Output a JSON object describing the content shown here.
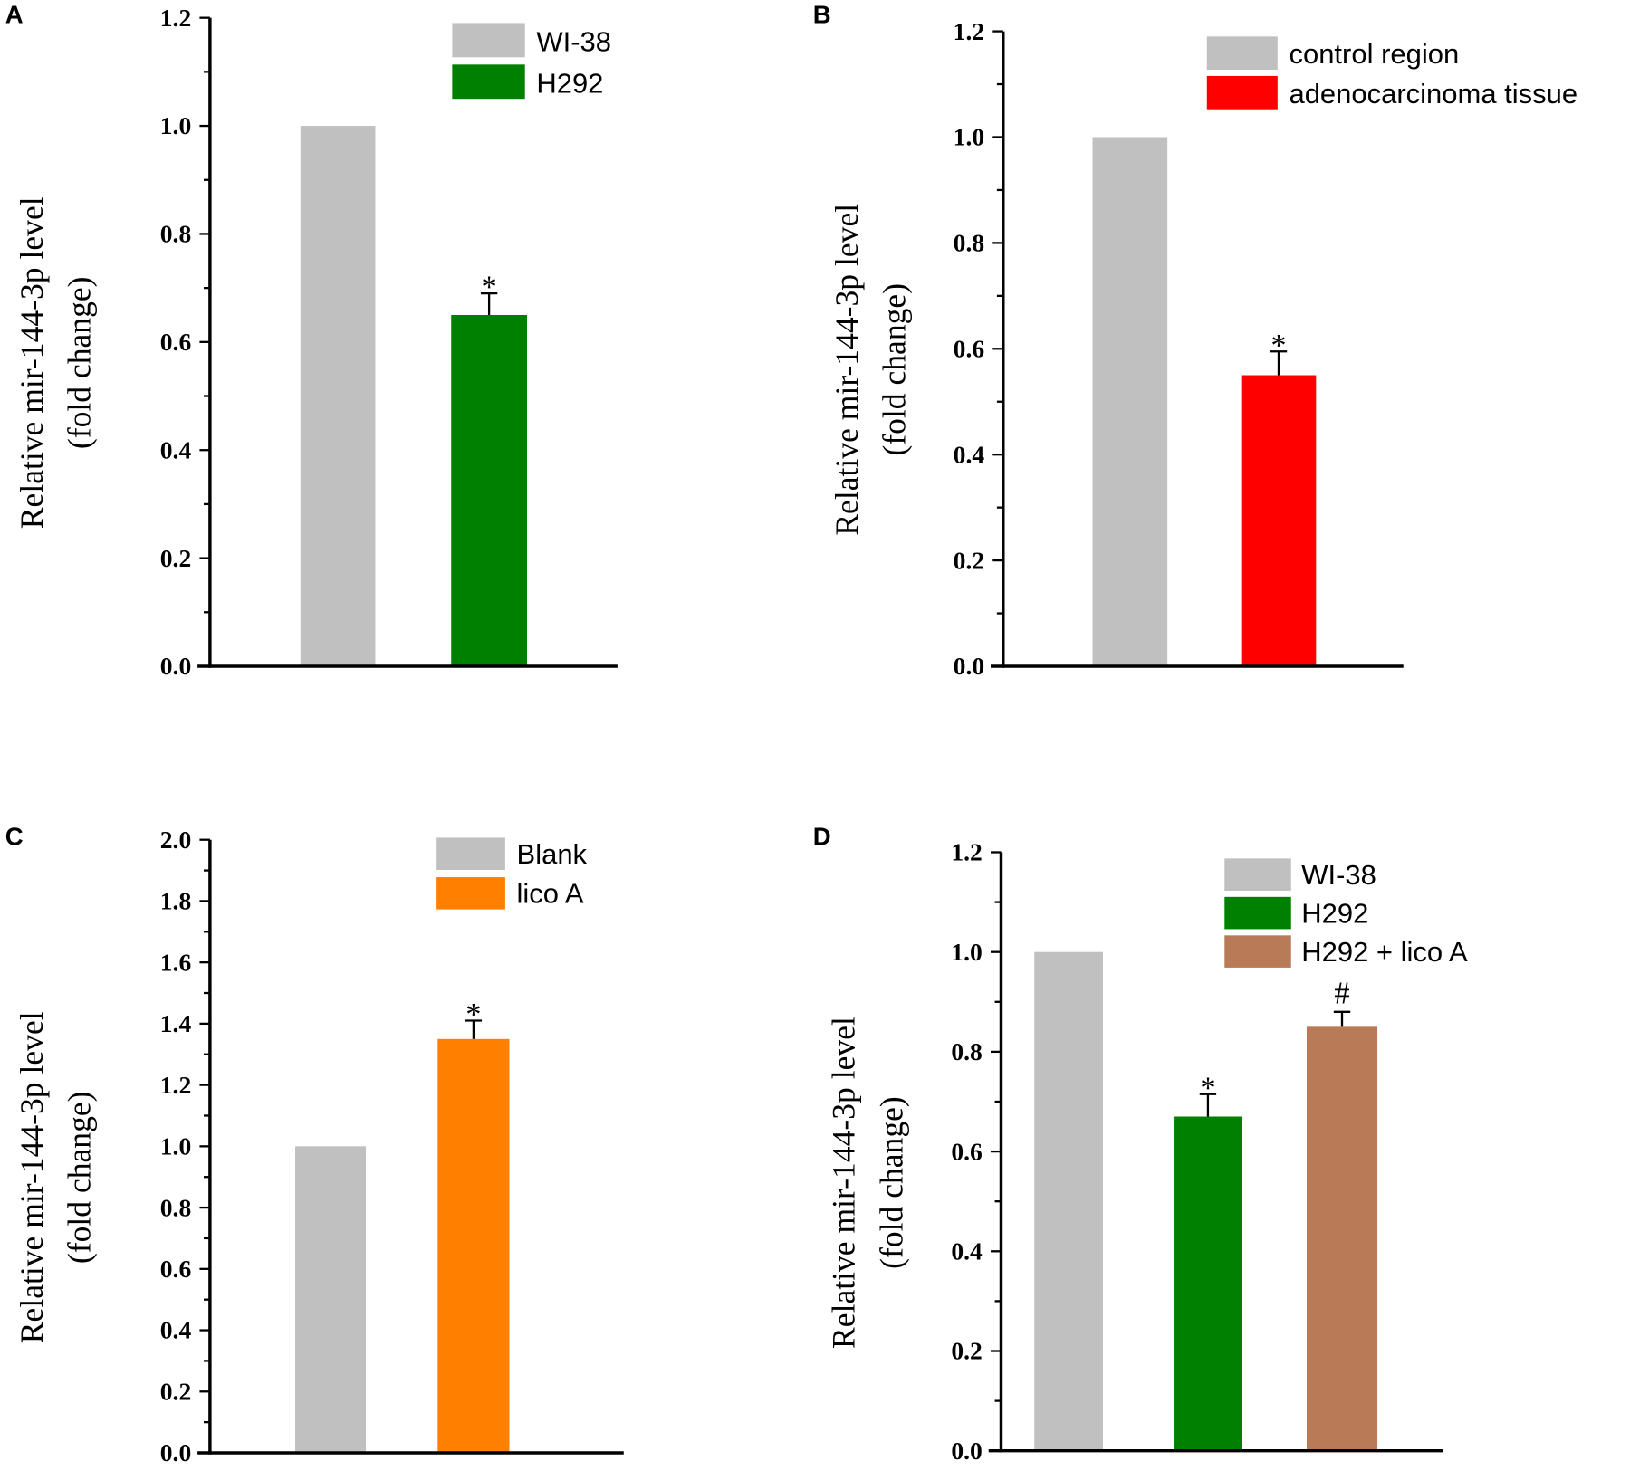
{
  "chart_data": [
    {
      "panel": "A",
      "type": "bar",
      "ylabel": [
        "Relative mir-144-3p level",
        "(fold change)"
      ],
      "ylim": [
        0,
        1.2
      ],
      "major_step": 0.2,
      "minor_step": 0.1,
      "yticks": [
        "0.0",
        "0.2",
        "0.4",
        "0.6",
        "0.8",
        "1.0",
        "1.2"
      ],
      "legend_placement": "top-right",
      "series": [
        {
          "name": "WI-38",
          "value": 1.0,
          "error": 0,
          "color": "#c0c0c0",
          "annotation": ""
        },
        {
          "name": "H292",
          "value": 0.65,
          "error": 0.04,
          "color": "#008000",
          "annotation": "*"
        }
      ]
    },
    {
      "panel": "B",
      "type": "bar",
      "ylabel": [
        "Relative mir-144-3p level",
        "(fold change)"
      ],
      "ylim": [
        0,
        1.2
      ],
      "major_step": 0.2,
      "minor_step": 0.1,
      "yticks": [
        "0.0",
        "0.2",
        "0.4",
        "0.6",
        "0.8",
        "1.0",
        "1.2"
      ],
      "legend_placement": "top-right",
      "series": [
        {
          "name": "control region",
          "value": 1.0,
          "error": 0,
          "color": "#c0c0c0",
          "annotation": ""
        },
        {
          "name": "adenocarcinoma tissue",
          "value": 0.55,
          "error": 0.045,
          "color": "#ff0000",
          "annotation": "*"
        }
      ]
    },
    {
      "panel": "C",
      "type": "bar",
      "ylabel": [
        "Relative mir-144-3p level",
        "(fold change)"
      ],
      "ylim": [
        0,
        2.0
      ],
      "major_step": 0.2,
      "minor_step": 0.1,
      "yticks": [
        "0.0",
        "0.2",
        "0.4",
        "0.6",
        "0.8",
        "1.0",
        "1.2",
        "1.4",
        "1.6",
        "1.8",
        "2.0"
      ],
      "legend_placement": "top-right",
      "series": [
        {
          "name": "Blank",
          "value": 1.0,
          "error": 0,
          "color": "#c0c0c0",
          "annotation": ""
        },
        {
          "name": "lico A",
          "value": 1.35,
          "error": 0.06,
          "color": "#ff8000",
          "annotation": "*"
        }
      ]
    },
    {
      "panel": "D",
      "type": "bar",
      "ylabel": [
        "Relative mir-144-3p level",
        "(fold change)"
      ],
      "ylim": [
        0,
        1.2
      ],
      "major_step": 0.2,
      "minor_step": 0.1,
      "yticks": [
        "0.0",
        "0.2",
        "0.4",
        "0.6",
        "0.8",
        "1.0",
        "1.2"
      ],
      "legend_placement": "top-right",
      "series": [
        {
          "name": "WI-38",
          "value": 1.0,
          "error": 0,
          "color": "#c0c0c0",
          "annotation": ""
        },
        {
          "name": "H292",
          "value": 0.67,
          "error": 0.045,
          "color": "#008000",
          "annotation": "*"
        },
        {
          "name": "H292  + lico A",
          "value": 0.85,
          "error": 0.03,
          "color": "#b97a57",
          "annotation": "#"
        }
      ]
    }
  ]
}
